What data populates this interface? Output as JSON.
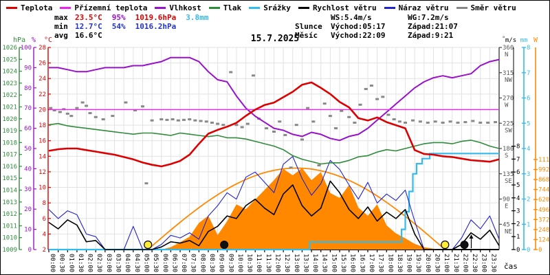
{
  "title": "15.7.2025",
  "legend": [
    {
      "label": "Teplota",
      "color": "#dd0000"
    },
    {
      "label": "Přízemní teplota",
      "color": "#ee22ee"
    },
    {
      "label": "Vlhkost",
      "color": "#9911cc"
    },
    {
      "label": "Tlak",
      "color": "#2e8b3a"
    },
    {
      "label": "Srážky",
      "color": "#33bbee"
    },
    {
      "label": "Rychlost větru",
      "color": "#000000"
    },
    {
      "label": "Náraz větru",
      "color": "#2222cc"
    },
    {
      "label": "Směr větru",
      "color": "#888888"
    }
  ],
  "stats_left": [
    {
      "label": "max",
      "cells": [
        {
          "text": "23.5°C",
          "color": "#dd0000"
        },
        {
          "text": "95%",
          "color": "#9911cc"
        },
        {
          "text": "1019.6hPa",
          "color": "#dd0000"
        },
        {
          "text": "3.8mm",
          "color": "#33bbee"
        }
      ]
    },
    {
      "label": "min",
      "cells": [
        {
          "text": "12.7°C",
          "color": "#2233cc"
        },
        {
          "text": "54%",
          "color": "#2233cc"
        },
        {
          "text": "1016.2hPa",
          "color": "#2233cc"
        }
      ]
    },
    {
      "label": "avg",
      "cells": [
        {
          "text": "16.6°C",
          "color": "#000000"
        }
      ]
    }
  ],
  "stats_right": [
    {
      "label": "",
      "cols": [
        "WS:5.4m/s",
        "WG:7.2m/s"
      ]
    },
    {
      "label": "Slunce",
      "cols": [
        "Východ:05:17",
        "Západ:21:07"
      ]
    },
    {
      "label": "Měsíc",
      "cols": [
        "Východ:22:09",
        "Západ:9:21"
      ]
    }
  ],
  "axes": {
    "left": [
      {
        "name": "hPa",
        "color": "#2e8b3a",
        "min": 1009,
        "max": 1026,
        "step": 1
      },
      {
        "name": "%",
        "color": "#9911cc",
        "min": 0,
        "max": 100,
        "step": 10
      },
      {
        "name": "°C",
        "color": "#dd0000",
        "min": 2,
        "max": 28,
        "step": 2
      }
    ],
    "right": [
      {
        "name": "°",
        "color": "#444444",
        "min": 45,
        "max": 360,
        "step": 45,
        "compass": {
          "360": "N",
          "315": "NW",
          "270": "W",
          "225": "SW",
          "180": "S",
          "135": "SE",
          "90": "E",
          "45": "NE"
        }
      },
      {
        "name": "m/s",
        "color": "#000000",
        "min": 0,
        "max": 8,
        "step": 1
      },
      {
        "name": "mm",
        "color": "#33bbee",
        "min": 0,
        "max": 8,
        "step": 1
      },
      {
        "name": "W",
        "color": "#ff8800",
        "min": 0,
        "max": 1116,
        "step": 124
      }
    ],
    "x_label": "čas",
    "x_tick_labels": [
      "00:00",
      "00:30",
      "01:00",
      "01:30",
      "02:00",
      "02:30",
      "03:00",
      "03:30",
      "04:00",
      "04:30",
      "05:00",
      "05:30",
      "06:00",
      "06:30",
      "07:00",
      "07:30",
      "08:00",
      "08:30",
      "09:00",
      "09:30",
      "10:00",
      "10:30",
      "11:00",
      "11:30",
      "12:00",
      "12:30",
      "13:00",
      "13:30",
      "14:00",
      "14:30",
      "15:00",
      "15:30",
      "16:00",
      "16:30",
      "17:00",
      "17:30",
      "18:00",
      "18:30",
      "19:00",
      "19:30",
      "20:00",
      "20:30",
      "21:00",
      "21:30",
      "22:00",
      "22:30",
      "23:00",
      "23:30"
    ]
  },
  "chart_data": {
    "type": "line",
    "title": "15.7.2025",
    "x_unit": "hours",
    "x_start": 0,
    "x_step": 0.5,
    "x_range": [
      0,
      24
    ],
    "grid": true,
    "series": [
      {
        "name": "Sluneční záření (čistá obloha)",
        "unit": "W",
        "color": "#ff8800",
        "kind": "arc",
        "arc": {
          "start": 5.28,
          "end": 21.12,
          "peak": 1010
        }
      },
      {
        "name": "Sluneční záření",
        "unit": "W",
        "color": "#ff8800",
        "kind": "area",
        "values": [
          0,
          0,
          0,
          0,
          0,
          0,
          0,
          0,
          0,
          0,
          0,
          0,
          0,
          30,
          90,
          160,
          330,
          420,
          180,
          350,
          560,
          500,
          620,
          740,
          860,
          1000,
          920,
          1010,
          860,
          960,
          700,
          640,
          800,
          520,
          420,
          560,
          300,
          200,
          140,
          70,
          30,
          10,
          0,
          0,
          0,
          0,
          0,
          0,
          0
        ]
      },
      {
        "name": "Srážky",
        "unit": "mm",
        "color": "#33bbee",
        "kind": "steps",
        "steps": [
          [
            0,
            0
          ],
          [
            13.8,
            0
          ],
          [
            13.9,
            0.3
          ],
          [
            18.6,
            0.3
          ],
          [
            18.8,
            0.8
          ],
          [
            19.0,
            1.5
          ],
          [
            19.2,
            2.3
          ],
          [
            19.4,
            3.0
          ],
          [
            19.6,
            3.4
          ],
          [
            19.9,
            3.6
          ],
          [
            20.3,
            3.8
          ],
          [
            24,
            3.8
          ]
        ]
      },
      {
        "name": "Náraz větru",
        "unit": "m/s",
        "color": "#2222cc",
        "kind": "line",
        "width": 1.1,
        "values": [
          3.1,
          2.4,
          3.0,
          2.7,
          1.2,
          1.0,
          0,
          0,
          0,
          1.8,
          0,
          0,
          0.4,
          1.1,
          0.9,
          1.3,
          0.8,
          2.6,
          3.4,
          4.4,
          3.9,
          5.6,
          6.0,
          5.2,
          4.4,
          6.6,
          7.2,
          5.5,
          4.2,
          5.1,
          6.9,
          6.2,
          5.0,
          3.9,
          5.2,
          3.6,
          4.3,
          3.8,
          4.6,
          2.2,
          0,
          0,
          0,
          0,
          0.9,
          2.3,
          1.6,
          2.6,
          0.8
        ]
      },
      {
        "name": "Rychlost větru",
        "unit": "m/s",
        "color": "#000000",
        "kind": "line",
        "width": 1.6,
        "values": [
          2.1,
          1.6,
          2.3,
          1.9,
          0.6,
          0.7,
          0,
          0,
          0,
          0,
          0,
          0,
          0.2,
          0.6,
          0.5,
          0.7,
          0.3,
          1.4,
          1.8,
          2.6,
          2.4,
          3.4,
          3.9,
          3.2,
          2.7,
          4.3,
          5.0,
          3.4,
          2.6,
          3.2,
          5.3,
          4.4,
          3.1,
          2.4,
          3.3,
          2.2,
          2.9,
          2.4,
          3.1,
          1.2,
          0,
          0,
          0,
          0,
          0.4,
          1.3,
          0.8,
          1.5,
          0.3
        ]
      },
      {
        "name": "Tlak",
        "unit": "hPa",
        "color": "#2e8b3a",
        "kind": "line",
        "width": 1.6,
        "values": [
          1019.5,
          1019.6,
          1019.4,
          1019.3,
          1019.2,
          1019.1,
          1019.0,
          1018.9,
          1018.8,
          1018.7,
          1018.8,
          1018.8,
          1018.7,
          1018.6,
          1018.8,
          1018.7,
          1018.6,
          1018.5,
          1018.6,
          1018.4,
          1018.4,
          1018.3,
          1018.1,
          1017.9,
          1017.7,
          1017.4,
          1016.9,
          1016.6,
          1016.4,
          1016.2,
          1016.3,
          1016.3,
          1016.5,
          1016.8,
          1016.9,
          1017.2,
          1017.4,
          1017.3,
          1017.5,
          1017.7,
          1017.9,
          1018.0,
          1018.0,
          1017.9,
          1018.1,
          1018.2,
          1018.0,
          1017.7,
          1017.5
        ]
      },
      {
        "name": "Vlhkost",
        "unit": "%",
        "color": "#9911cc",
        "kind": "line",
        "width": 2,
        "values": [
          90,
          90,
          89,
          88,
          88,
          89,
          90,
          90,
          90,
          91,
          91,
          92,
          93,
          95,
          95,
          95,
          93,
          88,
          84,
          83,
          76,
          70,
          66,
          63,
          60,
          59,
          57,
          56,
          58,
          57,
          55,
          54,
          56,
          57,
          60,
          64,
          68,
          72,
          76,
          80,
          83,
          85,
          86,
          85,
          86,
          87,
          91,
          93,
          94
        ]
      },
      {
        "name": "Přízemní teplota",
        "unit": "°C",
        "color": "#ee22ee",
        "kind": "const",
        "width": 1.4,
        "constant": 20
      },
      {
        "name": "Teplota",
        "unit": "°C",
        "color": "#dd0000",
        "kind": "line",
        "width": 2.6,
        "values": [
          14.7,
          14.9,
          15.0,
          15.0,
          14.8,
          14.6,
          14.4,
          14.2,
          13.9,
          13.6,
          13.2,
          12.9,
          12.7,
          13.0,
          13.4,
          14.2,
          15.6,
          16.9,
          17.4,
          17.8,
          18.3,
          19.2,
          20.0,
          20.6,
          20.9,
          21.6,
          22.3,
          23.2,
          23.5,
          22.8,
          22.0,
          21.0,
          20.3,
          18.9,
          18.6,
          19.0,
          18.4,
          18.0,
          17.6,
          14.8,
          14.3,
          14.2,
          14.0,
          13.9,
          13.7,
          13.5,
          13.4,
          13.3,
          13.6
        ]
      }
    ],
    "scatter": {
      "name": "Směr větru",
      "unit": "°",
      "color": "#888888",
      "points": [
        [
          0.1,
          252
        ],
        [
          0.3,
          248
        ],
        [
          0.6,
          245
        ],
        [
          0.8,
          250
        ],
        [
          1.0,
          242
        ],
        [
          1.2,
          238
        ],
        [
          1.5,
          252
        ],
        [
          1.8,
          262
        ],
        [
          2.0,
          256
        ],
        [
          2.2,
          243
        ],
        [
          2.5,
          236
        ],
        [
          2.9,
          232
        ],
        [
          3.4,
          238
        ],
        [
          4.1,
          262
        ],
        [
          4.6,
          248
        ],
        [
          5.0,
          255
        ],
        [
          5.2,
          118
        ],
        [
          5.5,
          230
        ],
        [
          6.0,
          232
        ],
        [
          6.3,
          231
        ],
        [
          6.6,
          232
        ],
        [
          6.9,
          230
        ],
        [
          7.2,
          231
        ],
        [
          7.5,
          232
        ],
        [
          7.8,
          230
        ],
        [
          8.1,
          229
        ],
        [
          8.4,
          228
        ],
        [
          8.7,
          226
        ],
        [
          9.0,
          224
        ],
        [
          9.3,
          222
        ],
        [
          9.7,
          316
        ],
        [
          10.0,
          222
        ],
        [
          10.3,
          218
        ],
        [
          10.6,
          224
        ],
        [
          10.9,
          310
        ],
        [
          11.2,
          233
        ],
        [
          11.6,
          216
        ],
        [
          12.0,
          210
        ],
        [
          12.3,
          228
        ],
        [
          12.6,
          204
        ],
        [
          12.9,
          146
        ],
        [
          13.2,
          222
        ],
        [
          13.5,
          196
        ],
        [
          13.8,
          252
        ],
        [
          14.1,
          228
        ],
        [
          14.4,
          150
        ],
        [
          14.7,
          260
        ],
        [
          15.0,
          238
        ],
        [
          15.3,
          216
        ],
        [
          15.6,
          247
        ],
        [
          16.0,
          236
        ],
        [
          16.3,
          226
        ],
        [
          16.6,
          258
        ],
        [
          16.9,
          286
        ],
        [
          17.2,
          292
        ],
        [
          17.5,
          268
        ],
        [
          17.8,
          272
        ],
        [
          18.1,
          240
        ],
        [
          18.4,
          232
        ],
        [
          18.7,
          228
        ],
        [
          19.0,
          226
        ],
        [
          19.4,
          230
        ],
        [
          19.8,
          228
        ],
        [
          20.2,
          226
        ],
        [
          20.6,
          228
        ],
        [
          21.0,
          226
        ],
        [
          21.4,
          228
        ],
        [
          21.8,
          226
        ],
        [
          22.2,
          227
        ],
        [
          22.6,
          229
        ],
        [
          23.0,
          226
        ],
        [
          23.4,
          226
        ],
        [
          23.8,
          227
        ]
      ]
    },
    "markers": {
      "sun": [
        {
          "t": 5.283,
          "event": "východ",
          "time": "05:17"
        },
        {
          "t": 21.117,
          "event": "západ",
          "time": "21:07"
        }
      ],
      "moon": [
        {
          "t": 9.35,
          "event": "západ",
          "time": "9:21"
        },
        {
          "t": 22.15,
          "event": "východ",
          "time": "22:09",
          "arrow": "up"
        }
      ]
    }
  }
}
